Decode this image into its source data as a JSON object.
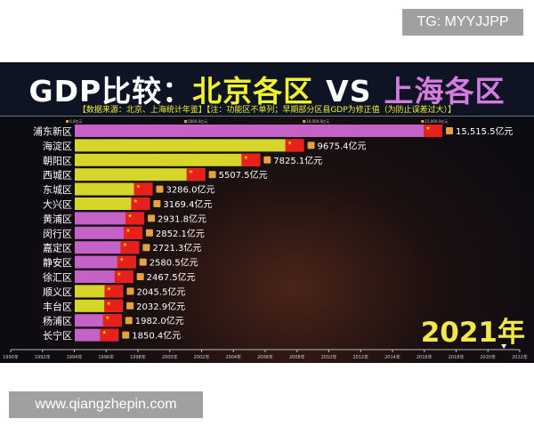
{
  "watermarks": {
    "top": "TG: MYYJJPP",
    "bottom": "www.qiangzhepin.com"
  },
  "header": {
    "title_prefix": "GDP比较：",
    "title_beijing": "北京各区",
    "title_vs": "VS",
    "title_shanghai": "上海各区",
    "subtitle": "【数据来源：北京、上海统计年鉴】【注：功能区不单列；早期部分区县GDP为修正值（为防止误差过大）】"
  },
  "colors": {
    "beijing": "#d6d62a",
    "shanghai": "#c462c8",
    "flag": "#e8201c",
    "year": "#f2e84a"
  },
  "chart_data": {
    "type": "bar",
    "orientation": "horizontal",
    "unit": "亿元",
    "year_label": "2021年",
    "xlim": [
      0,
      15515.5
    ],
    "x_ticks": [
      "0.0亿元",
      "5000.0亿元",
      "10,000.0亿元",
      "15,000.0亿元"
    ],
    "x_tick_values": [
      0,
      5000,
      10000,
      15000
    ],
    "timeline_ticks": [
      "1990年",
      "1992年",
      "1994年",
      "1996年",
      "1998年",
      "2000年",
      "2002年",
      "2004年",
      "2006年",
      "2008年",
      "2010年",
      "2012年",
      "2014年",
      "2016年",
      "2018年",
      "2020年",
      "2022年"
    ],
    "timeline_range": [
      1990,
      2022
    ],
    "timeline_current": 2021,
    "categories": [
      "浦东新区",
      "海淀区",
      "朝阳区",
      "西城区",
      "东城区",
      "大兴区",
      "黄浦区",
      "闵行区",
      "嘉定区",
      "静安区",
      "徐汇区",
      "顺义区",
      "丰台区",
      "杨浦区",
      "长宁区"
    ],
    "values": [
      15515.5,
      9675.4,
      7825.1,
      5507.5,
      3286.0,
      3169.4,
      2931.8,
      2852.1,
      2721.3,
      2580.5,
      2467.5,
      2045.5,
      2032.9,
      1982.0,
      1850.4
    ],
    "value_labels": [
      "15,515.5亿元",
      "9675.4亿元",
      "7825.1亿元",
      "5507.5亿元",
      "3286.0亿元",
      "3169.4亿元",
      "2931.8亿元",
      "2852.1亿元",
      "2721.3亿元",
      "2580.5亿元",
      "2467.5亿元",
      "2045.5亿元",
      "2032.9亿元",
      "1982.0亿元",
      "1850.4亿元"
    ],
    "city": [
      "上海",
      "北京",
      "北京",
      "北京",
      "北京",
      "北京",
      "上海",
      "上海",
      "上海",
      "上海",
      "上海",
      "北京",
      "北京",
      "上海",
      "上海"
    ]
  }
}
